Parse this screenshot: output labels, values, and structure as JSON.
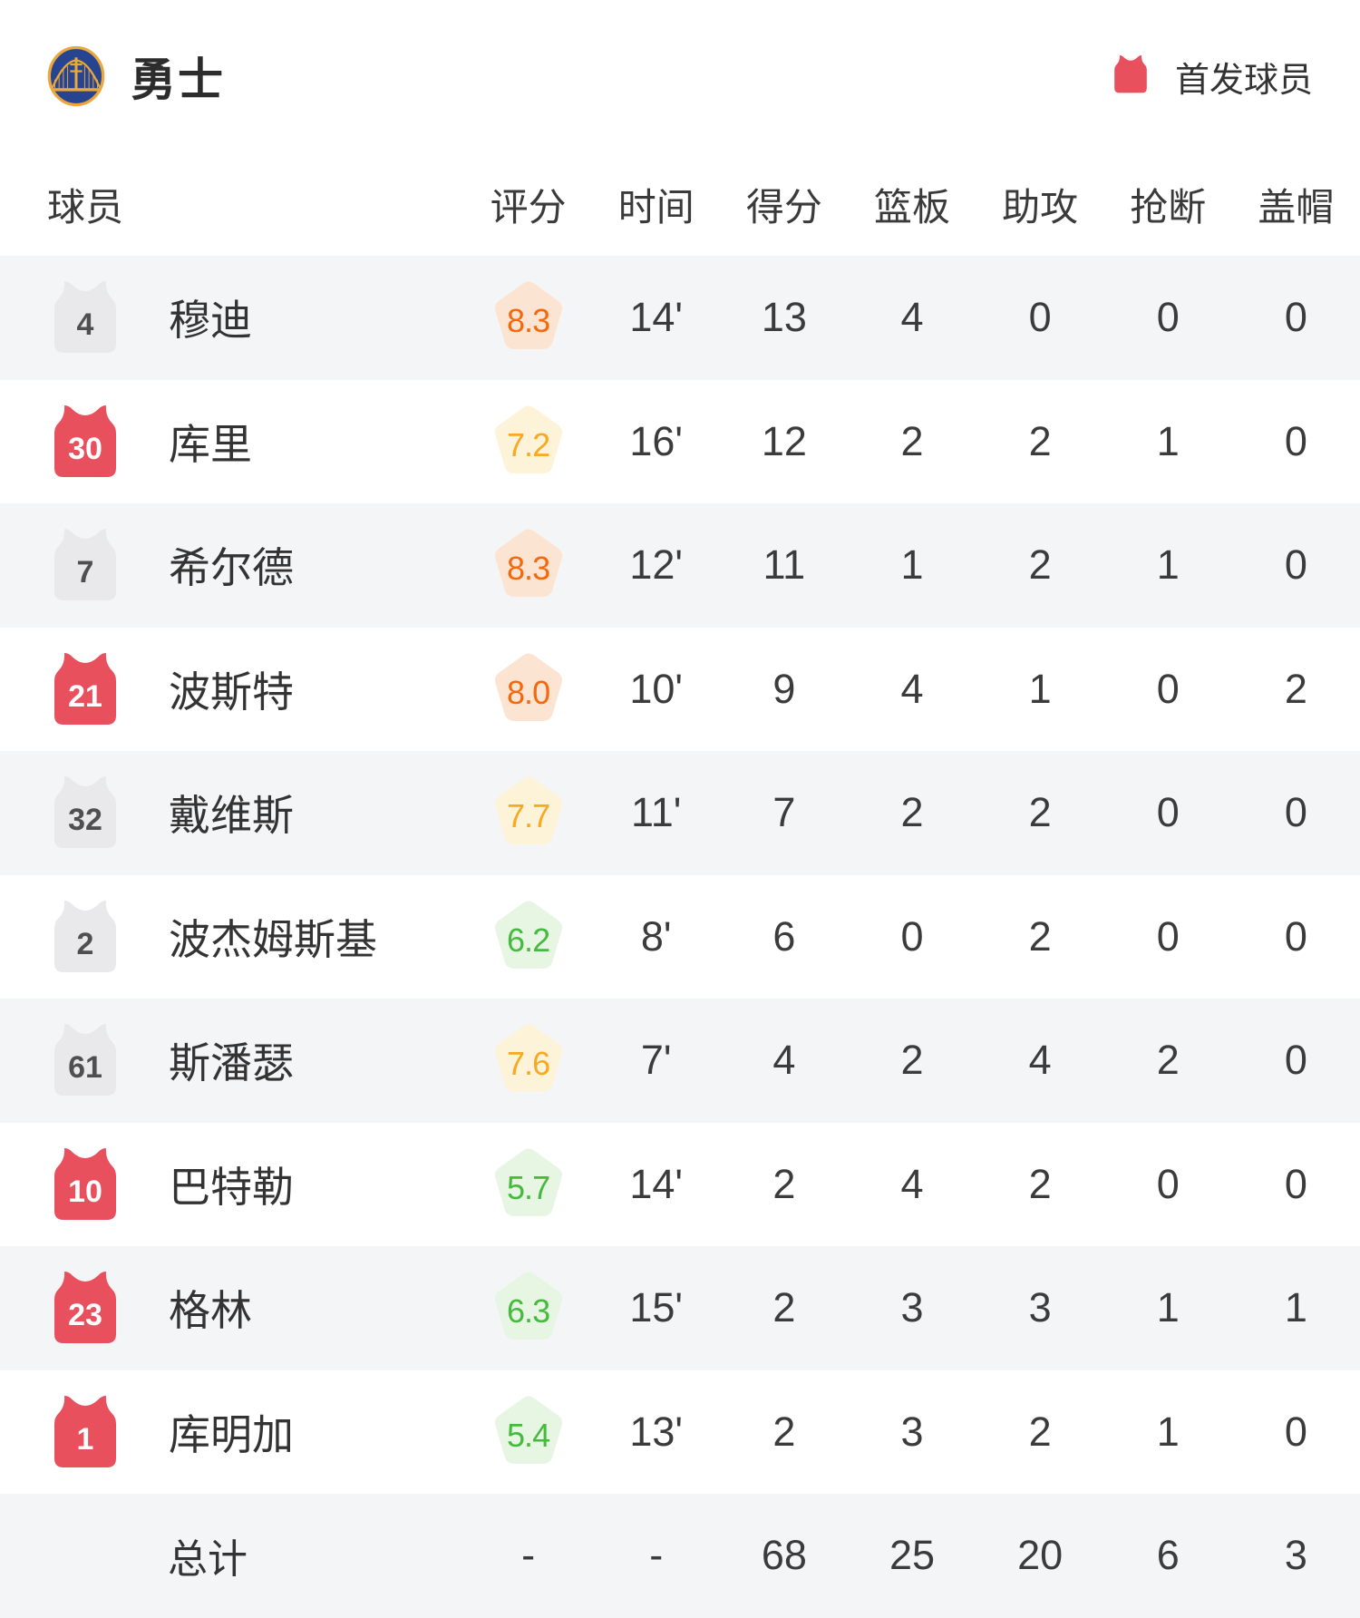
{
  "header": {
    "team_name": "勇士",
    "logo": "warriors-logo"
  },
  "legend": {
    "label": "首发球员"
  },
  "columns": [
    "球员",
    "评分",
    "时间",
    "得分",
    "篮板",
    "助攻",
    "抢断",
    "盖帽"
  ],
  "players": [
    {
      "number": "4",
      "starter": false,
      "name": "穆迪",
      "rating": "8.3",
      "time": "14'",
      "points": "13",
      "rebounds": "4",
      "assists": "0",
      "steals": "0",
      "blocks": "0"
    },
    {
      "number": "30",
      "starter": true,
      "name": "库里",
      "rating": "7.2",
      "time": "16'",
      "points": "12",
      "rebounds": "2",
      "assists": "2",
      "steals": "1",
      "blocks": "0"
    },
    {
      "number": "7",
      "starter": false,
      "name": "希尔德",
      "rating": "8.3",
      "time": "12'",
      "points": "11",
      "rebounds": "1",
      "assists": "2",
      "steals": "1",
      "blocks": "0"
    },
    {
      "number": "21",
      "starter": true,
      "name": "波斯特",
      "rating": "8.0",
      "time": "10'",
      "points": "9",
      "rebounds": "4",
      "assists": "1",
      "steals": "0",
      "blocks": "2"
    },
    {
      "number": "32",
      "starter": false,
      "name": "戴维斯",
      "rating": "7.7",
      "time": "11'",
      "points": "7",
      "rebounds": "2",
      "assists": "2",
      "steals": "0",
      "blocks": "0"
    },
    {
      "number": "2",
      "starter": false,
      "name": "波杰姆斯基",
      "rating": "6.2",
      "time": "8'",
      "points": "6",
      "rebounds": "0",
      "assists": "2",
      "steals": "0",
      "blocks": "0"
    },
    {
      "number": "61",
      "starter": false,
      "name": "斯潘瑟",
      "rating": "7.6",
      "time": "7'",
      "points": "4",
      "rebounds": "2",
      "assists": "4",
      "steals": "2",
      "blocks": "0"
    },
    {
      "number": "10",
      "starter": true,
      "name": "巴特勒",
      "rating": "5.7",
      "time": "14'",
      "points": "2",
      "rebounds": "4",
      "assists": "2",
      "steals": "0",
      "blocks": "0"
    },
    {
      "number": "23",
      "starter": true,
      "name": "格林",
      "rating": "6.3",
      "time": "15'",
      "points": "2",
      "rebounds": "3",
      "assists": "3",
      "steals": "1",
      "blocks": "1"
    },
    {
      "number": "1",
      "starter": true,
      "name": "库明加",
      "rating": "5.4",
      "time": "13'",
      "points": "2",
      "rebounds": "3",
      "assists": "2",
      "steals": "1",
      "blocks": "0"
    }
  ],
  "totals": {
    "label": "总计",
    "rating": "-",
    "time": "-",
    "points": "68",
    "rebounds": "25",
    "assists": "20",
    "steals": "6",
    "blocks": "3"
  },
  "colors": {
    "row_alt_bg": "#f4f5f7",
    "starter_jersey": "#e8505e",
    "starter_number": "#ffffff",
    "bench_jersey": "#e9e9eb",
    "bench_number": "#4f4f4f",
    "rating_high_text": "#f5690e",
    "rating_high_bg": "#fce4d3",
    "rating_mid_text": "#f7a921",
    "rating_mid_bg": "#fdf3d9",
    "rating_low_text": "#46ba3e",
    "rating_low_bg": "#e7f5e3",
    "logo_blue": "#274490",
    "logo_gold": "#eaa83c"
  }
}
